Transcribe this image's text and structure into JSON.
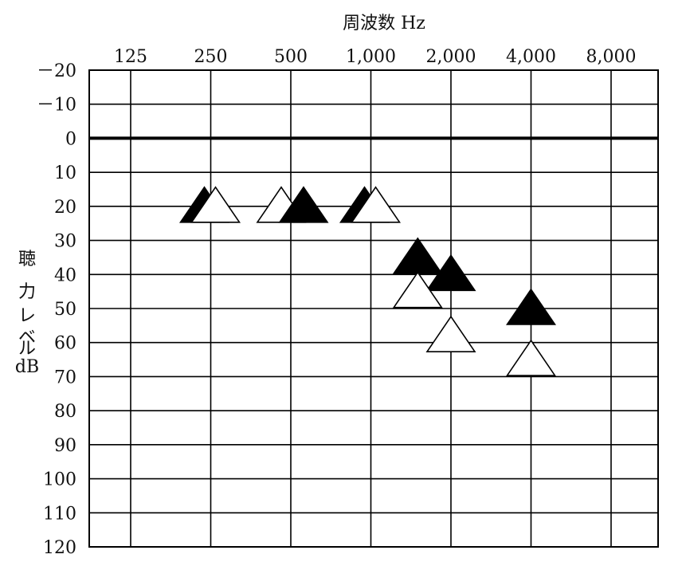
{
  "chart_data": {
    "type": "scatter",
    "title": "周波数 Hz",
    "ylabel_lines": [
      "聴",
      "力",
      "レ",
      "ベ",
      "ル",
      "dB"
    ],
    "x_categories": [
      "125",
      "250",
      "500",
      "1,000",
      "2,000",
      "4,000",
      "8,000"
    ],
    "x_values": [
      125,
      250,
      500,
      1000,
      2000,
      4000,
      8000
    ],
    "y_ticks": [
      -20,
      -10,
      0,
      10,
      20,
      30,
      40,
      50,
      60,
      70,
      80,
      90,
      100,
      110,
      120
    ],
    "y_tick_labels": [
      "－20",
      "－10",
      "0",
      "10",
      "20",
      "30",
      "40",
      "50",
      "60",
      "70",
      "80",
      "90",
      "100",
      "110",
      "120"
    ],
    "ylim": [
      -20,
      120
    ],
    "y_inverted": true,
    "x_scale": "log2",
    "grid": true,
    "series": [
      {
        "marker": "filled-triangle",
        "color": "#000000",
        "points": [
          {
            "x": 250,
            "y": 20
          },
          {
            "x": 500,
            "y": 20
          },
          {
            "x": 1000,
            "y": 20
          },
          {
            "x": 1500,
            "y": 35
          },
          {
            "x": 2000,
            "y": 40
          },
          {
            "x": 4000,
            "y": 50
          }
        ]
      },
      {
        "marker": "open-triangle",
        "color": "#ffffff",
        "points": [
          {
            "x": 250,
            "y": 20
          },
          {
            "x": 500,
            "y": 20
          },
          {
            "x": 1000,
            "y": 20
          },
          {
            "x": 1500,
            "y": 45
          },
          {
            "x": 2000,
            "y": 58
          },
          {
            "x": 4000,
            "y": 65
          }
        ]
      }
    ]
  }
}
